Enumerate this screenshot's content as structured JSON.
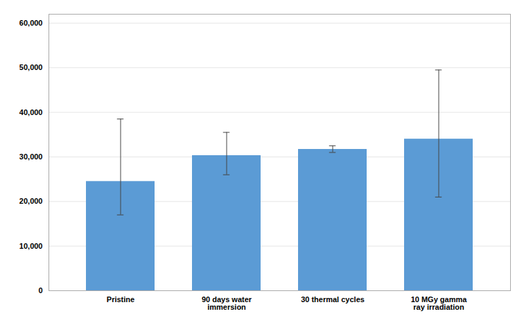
{
  "chart_data": {
    "type": "bar",
    "categories": [
      "Pristine",
      "90 days water\nimmersion",
      "30 thermal cycles",
      "10 MGy gamma\nray irradiation"
    ],
    "values": [
      24500,
      30300,
      31700,
      34000
    ],
    "errors_low": [
      7500,
      4300,
      700,
      13000
    ],
    "errors_high": [
      14000,
      5200,
      800,
      15500
    ],
    "color": "#5B9BD5",
    "ylim": [
      0,
      62000
    ],
    "yticks": [
      0,
      {
        "value": 10000,
        "label": "10,000"
      },
      {
        "value": 20000,
        "label": "20,000"
      },
      {
        "value": 30000,
        "label": "30,000"
      },
      {
        "value": 40000,
        "label": "40,000"
      },
      {
        "value": 50000,
        "label": "50,000"
      },
      {
        "value": 60000,
        "label": "60,000"
      }
    ],
    "grid": true
  }
}
